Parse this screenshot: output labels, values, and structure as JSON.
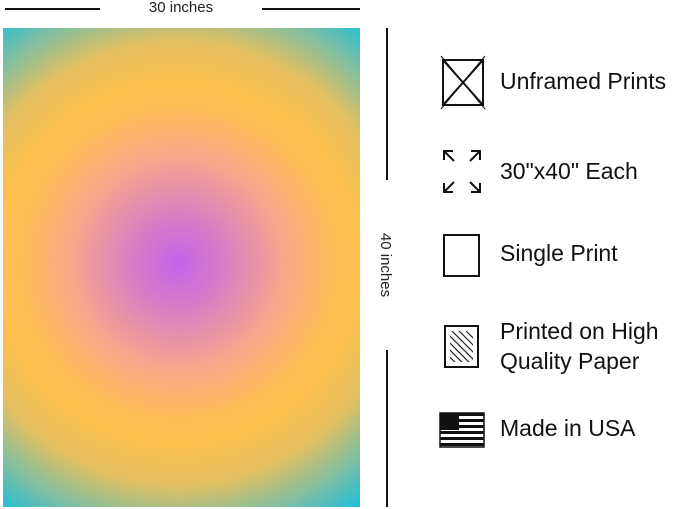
{
  "dimensions": {
    "width_label": "30 inches",
    "height_label": "40 inches"
  },
  "features": [
    {
      "icon": "unframed",
      "lines": [
        "Unframed Prints"
      ]
    },
    {
      "icon": "size",
      "lines": [
        "30\"x40\" Each"
      ]
    },
    {
      "icon": "single",
      "lines": [
        "Single Print"
      ]
    },
    {
      "icon": "paper",
      "lines": [
        "Printed on High",
        "Quality Paper"
      ]
    },
    {
      "icon": "flag",
      "lines": [
        "Made in USA"
      ]
    }
  ]
}
